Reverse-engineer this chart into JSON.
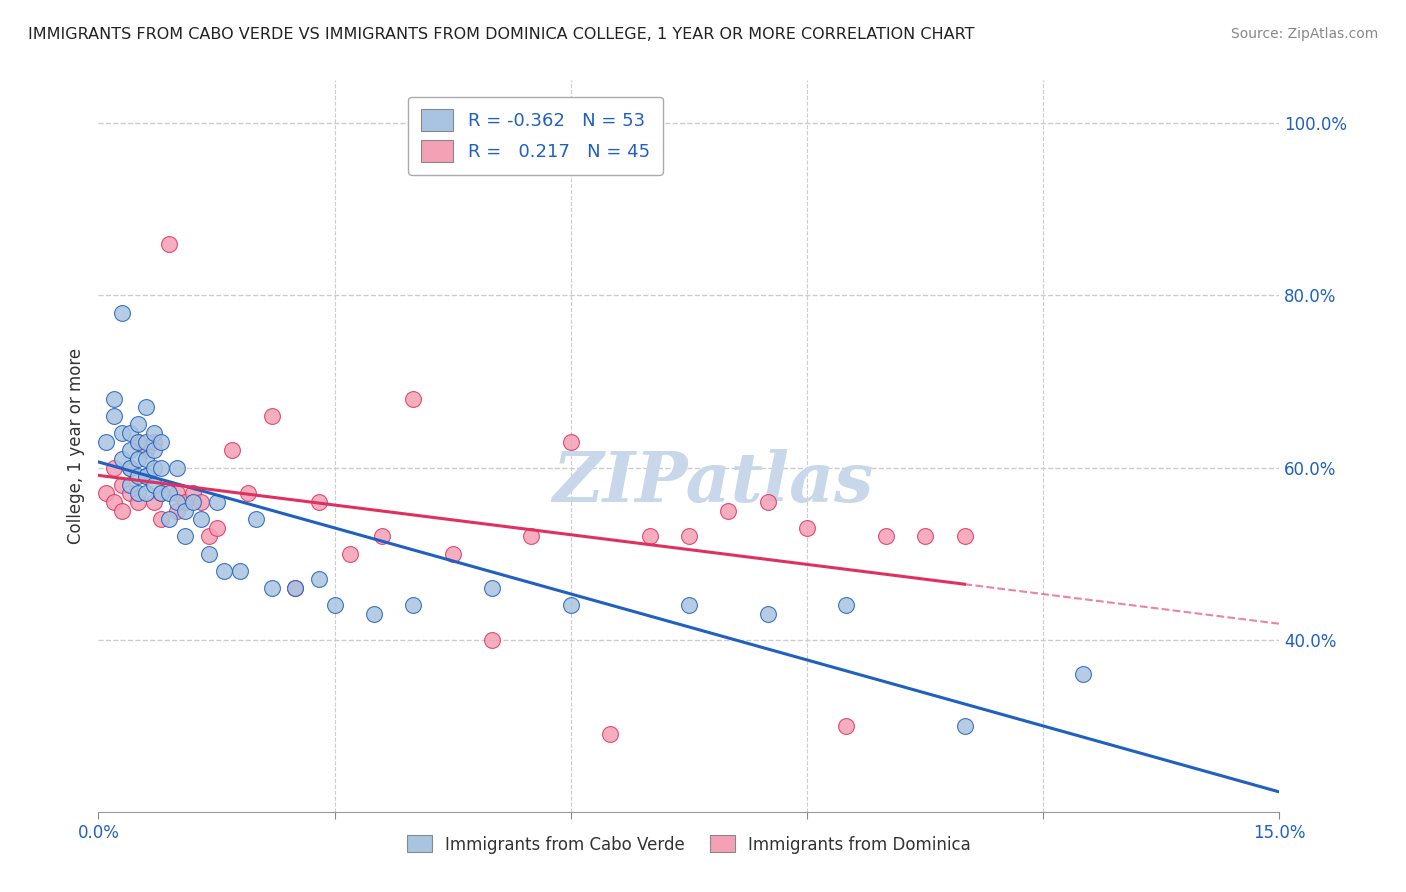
{
  "title": "IMMIGRANTS FROM CABO VERDE VS IMMIGRANTS FROM DOMINICA COLLEGE, 1 YEAR OR MORE CORRELATION CHART",
  "source": "Source: ZipAtlas.com",
  "ylabel": "College, 1 year or more",
  "legend_label_1": "Immigrants from Cabo Verde",
  "legend_label_2": "Immigrants from Dominica",
  "r1": -0.362,
  "n1": 53,
  "r2": 0.217,
  "n2": 45,
  "color1": "#a8c4e0",
  "color2": "#f4a0b5",
  "line_color1": "#2060c0",
  "line_color2": "#e03060",
  "xlim": [
    0.0,
    0.15
  ],
  "ylim": [
    0.2,
    1.05
  ],
  "right_yticks": [
    0.4,
    0.6,
    0.8,
    1.0
  ],
  "right_ytick_labels": [
    "40.0%",
    "60.0%",
    "80.0%",
    "100.0%"
  ],
  "watermark": "ZIPatlas",
  "watermark_color": "#c8d8ea",
  "cabo_verde_x": [
    0.001,
    0.002,
    0.002,
    0.003,
    0.003,
    0.003,
    0.004,
    0.004,
    0.004,
    0.004,
    0.005,
    0.005,
    0.005,
    0.005,
    0.005,
    0.006,
    0.006,
    0.006,
    0.006,
    0.006,
    0.007,
    0.007,
    0.007,
    0.007,
    0.008,
    0.008,
    0.008,
    0.009,
    0.009,
    0.01,
    0.01,
    0.011,
    0.011,
    0.012,
    0.013,
    0.014,
    0.015,
    0.016,
    0.018,
    0.02,
    0.022,
    0.025,
    0.028,
    0.03,
    0.035,
    0.04,
    0.05,
    0.06,
    0.075,
    0.085,
    0.095,
    0.11,
    0.125
  ],
  "cabo_verde_y": [
    0.63,
    0.68,
    0.66,
    0.64,
    0.61,
    0.78,
    0.64,
    0.62,
    0.6,
    0.58,
    0.65,
    0.63,
    0.61,
    0.59,
    0.57,
    0.67,
    0.63,
    0.61,
    0.59,
    0.57,
    0.64,
    0.62,
    0.6,
    0.58,
    0.63,
    0.6,
    0.57,
    0.57,
    0.54,
    0.6,
    0.56,
    0.55,
    0.52,
    0.56,
    0.54,
    0.5,
    0.56,
    0.48,
    0.48,
    0.54,
    0.46,
    0.46,
    0.47,
    0.44,
    0.43,
    0.44,
    0.46,
    0.44,
    0.44,
    0.43,
    0.44,
    0.3,
    0.36
  ],
  "dominica_x": [
    0.001,
    0.002,
    0.002,
    0.003,
    0.003,
    0.004,
    0.004,
    0.005,
    0.005,
    0.006,
    0.006,
    0.007,
    0.007,
    0.008,
    0.008,
    0.009,
    0.01,
    0.01,
    0.011,
    0.012,
    0.013,
    0.014,
    0.015,
    0.017,
    0.019,
    0.022,
    0.025,
    0.028,
    0.032,
    0.036,
    0.04,
    0.045,
    0.05,
    0.055,
    0.06,
    0.065,
    0.07,
    0.075,
    0.08,
    0.085,
    0.09,
    0.095,
    0.1,
    0.105,
    0.11
  ],
  "dominica_y": [
    0.57,
    0.6,
    0.56,
    0.58,
    0.55,
    0.6,
    0.57,
    0.63,
    0.56,
    0.62,
    0.59,
    0.63,
    0.56,
    0.57,
    0.54,
    0.86,
    0.57,
    0.55,
    0.56,
    0.57,
    0.56,
    0.52,
    0.53,
    0.62,
    0.57,
    0.66,
    0.46,
    0.56,
    0.5,
    0.52,
    0.68,
    0.5,
    0.4,
    0.52,
    0.63,
    0.29,
    0.52,
    0.52,
    0.55,
    0.56,
    0.53,
    0.3,
    0.52,
    0.52,
    0.52
  ]
}
